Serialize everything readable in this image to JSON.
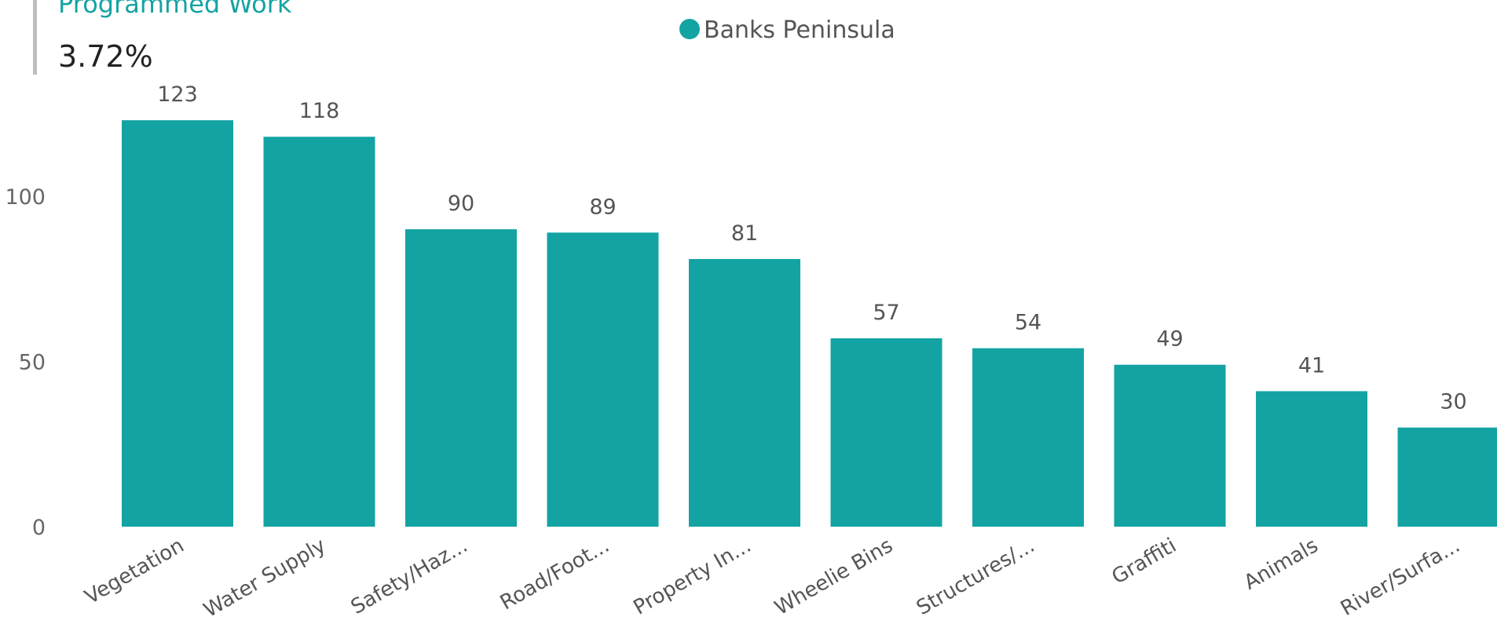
{
  "header": {
    "title": "Programmed Work",
    "value": "3.72%"
  },
  "colors": {
    "bar": "#14a3a3",
    "accent": "#14a3a3"
  },
  "chart_data": {
    "type": "bar",
    "legend": {
      "position": "top-center",
      "entries": [
        "Banks Peninsula"
      ]
    },
    "categories": [
      "Vegetation",
      "Water Supply",
      "Safety/Haz...",
      "Road/Foot...",
      "Property In...",
      "Wheelie Bins",
      "Structures/...",
      "Graffiti",
      "Animals",
      "River/Surfa..."
    ],
    "series": [
      {
        "name": "Banks Peninsula",
        "values": [
          123,
          118,
          90,
          89,
          81,
          57,
          54,
          49,
          41,
          30
        ]
      }
    ],
    "yticks": [
      0,
      50,
      100
    ],
    "ylim": [
      0,
      130
    ],
    "grid": false
  }
}
